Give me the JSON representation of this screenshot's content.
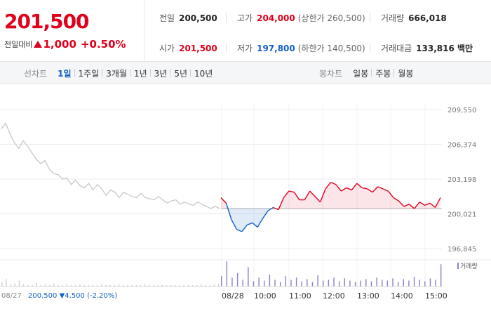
{
  "quote": {
    "price": "201,500",
    "change_label": "전일대비",
    "change_value": "1,000",
    "change_pct": "+0.50%"
  },
  "stats": {
    "prev_close_label": "전일",
    "prev_close": "200,500",
    "high_label": "고가",
    "high": "204,000",
    "upper_limit": "(상한가 260,500)",
    "volume_label": "거래량",
    "volume": "666,018",
    "open_label": "시가",
    "open": "201,500",
    "low_label": "저가",
    "low": "197,800",
    "lower_limit": "(하한가 140,500)",
    "value_label": "거래대금",
    "value": "133,816 백만"
  },
  "tabs": {
    "line_title": "선차트",
    "line": [
      "1일",
      "1주일",
      "3개월",
      "1년",
      "3년",
      "5년",
      "10년"
    ],
    "candle_title": "봉차트",
    "candle": [
      "일봉",
      "주봉",
      "월봉"
    ]
  },
  "colors": {
    "up": "#e0001b",
    "down": "#1261c4",
    "prev_day": "#c8c8c8",
    "volume": "#8e7fc4"
  },
  "chart_data": {
    "type": "line",
    "y_ticks": [
      "209,550",
      "206,374",
      "203,198",
      "200,021",
      "196,845"
    ],
    "x_ticks": [
      "08/27",
      "08/28",
      "10:00",
      "11:00",
      "12:00",
      "13:00",
      "14:00",
      "15:00"
    ],
    "baseline": 200500,
    "ylim": [
      196845,
      209550
    ],
    "prev_info": {
      "date": "08/27",
      "price": "200,500",
      "change": "▼4,500",
      "pct": "(-2.20%)"
    },
    "volume_legend": "거래량",
    "series": [
      {
        "values": [
          207800,
          208300,
          207300,
          206500,
          206000,
          206700,
          206200,
          205600,
          205000,
          204600,
          204900,
          204100,
          203700,
          203600,
          203200,
          203300,
          202700,
          203100,
          202600,
          202400,
          202800,
          202200,
          202700,
          202300,
          201700,
          202200,
          202000,
          201500,
          202000,
          201800,
          201600,
          201500,
          201900,
          201500,
          201400,
          201300,
          201600,
          201300,
          201000,
          201200,
          201300,
          200900,
          201100,
          200900,
          200800,
          201100,
          200900,
          200700,
          200500,
          200700,
          200500
        ]
      },
      {
        "values": [
          201500,
          201000,
          199500,
          198600,
          198400,
          199000,
          199200,
          198800,
          199600,
          200300,
          200600,
          200400,
          201500,
          202100,
          202000,
          201300,
          201300,
          202100,
          201600,
          201100,
          202300,
          202900,
          202700,
          202100,
          202400,
          202200,
          202800,
          202400,
          202300,
          202000,
          202500,
          202300,
          202100,
          201500,
          201200,
          200700,
          200900,
          200500,
          201100,
          200800,
          201000,
          200600,
          201500
        ]
      }
    ],
    "volume": [
      6,
      10,
      3,
      4,
      8,
      3,
      2,
      2,
      5,
      2,
      3,
      2,
      4,
      2,
      2,
      3,
      2,
      2,
      3,
      2,
      2,
      2,
      2,
      3,
      2,
      2,
      2,
      3,
      2,
      2,
      2,
      2,
      2,
      3,
      2,
      2,
      2,
      2,
      2,
      2,
      2,
      2,
      2,
      2,
      2,
      2,
      3,
      2,
      2,
      3,
      4,
      14,
      34,
      12,
      18,
      9,
      26,
      7,
      12,
      8,
      16,
      9,
      6,
      14,
      9,
      12,
      7,
      10,
      6,
      15,
      8,
      9,
      12,
      7,
      11,
      8,
      6,
      8,
      10,
      7,
      12,
      9,
      8,
      11,
      6,
      10,
      8,
      13,
      9,
      7,
      11,
      9,
      30
    ]
  }
}
